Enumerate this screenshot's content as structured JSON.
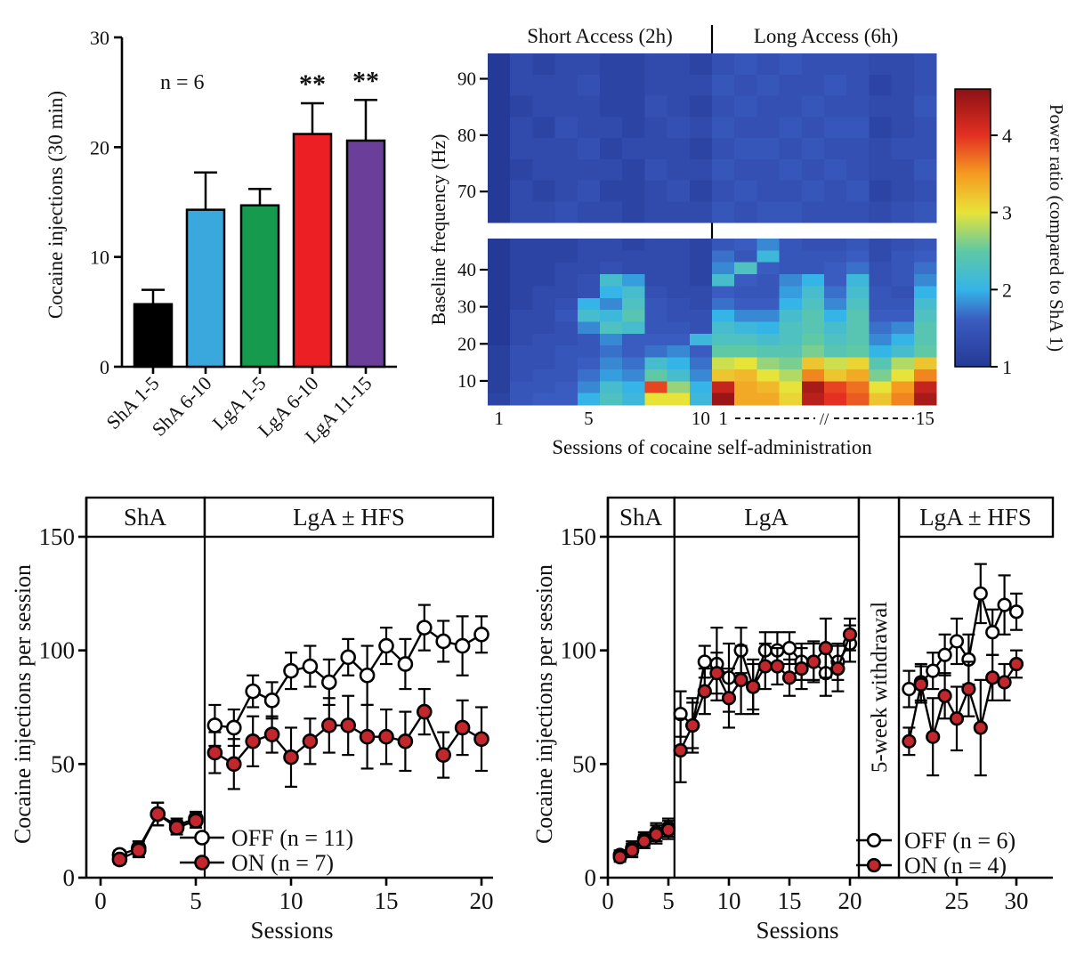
{
  "figure": {
    "background": "#ffffff",
    "text_color": "#111111"
  },
  "chart_data": [
    {
      "id": "injections_bar",
      "type": "bar",
      "annotation": "n = 6",
      "ylabel": "Cocaine injections (30 min)",
      "ylim": [
        0,
        30
      ],
      "yticks": [
        0,
        10,
        20,
        30
      ],
      "categories": [
        "ShA 1-5",
        "ShA 6-10",
        "LgA 1-5",
        "LgA 6-10",
        "LgA 11-15"
      ],
      "values": [
        5.7,
        14.3,
        14.7,
        21.2,
        20.6
      ],
      "errors": [
        1.3,
        3.4,
        1.5,
        2.8,
        3.7
      ],
      "colors": [
        "#000000",
        "#3aa8dc",
        "#169b4e",
        "#ec2024",
        "#6a3e99"
      ],
      "significance": [
        "",
        "",
        "",
        "**",
        "**"
      ]
    },
    {
      "id": "power_heatmap",
      "type": "heatmap",
      "titles": [
        "Short Access (2h)",
        "Long Access (6h)"
      ],
      "xlabel": "Sessions of cocaine self-administration",
      "ylabel": "Baseline frequency (Hz)",
      "x_axis": {
        "sha_ticks": [
          {
            "label": "1",
            "col": 0
          },
          {
            "label": "5",
            "col": 4
          },
          {
            "label": "10",
            "col": 9
          }
        ],
        "lga_ticks": [
          {
            "label": "1",
            "col": 10
          },
          {
            "label": "15",
            "col": 19
          }
        ],
        "slash": "//"
      },
      "colorbar": {
        "label": "Power ratio (compared to ShA 1)",
        "range": [
          1,
          4.6
        ],
        "ticks": [
          1,
          2,
          3,
          4
        ],
        "stops": [
          [
            1.0,
            "#253a96"
          ],
          [
            1.6,
            "#3a5bc0"
          ],
          [
            2.0,
            "#35b4e8"
          ],
          [
            2.5,
            "#5fc9a5"
          ],
          [
            3.0,
            "#e8e339"
          ],
          [
            3.5,
            "#f59b20"
          ],
          [
            4.0,
            "#e33023"
          ],
          [
            4.6,
            "#8c1014"
          ]
        ]
      },
      "upper_block": {
        "freq_top": 94.5,
        "freq_bottom": 64.5,
        "yticks": [
          90,
          80,
          70
        ],
        "rows": [
          [
            1.0,
            1.3,
            1.2,
            1.3,
            1.3,
            1.2,
            1.2,
            1.3,
            1.3,
            1.2,
            1.4,
            1.5,
            1.4,
            1.5,
            1.4,
            1.4,
            1.4,
            1.3,
            1.3,
            1.4
          ],
          [
            1.0,
            1.3,
            1.3,
            1.3,
            1.4,
            1.2,
            1.2,
            1.3,
            1.3,
            1.3,
            1.5,
            1.4,
            1.5,
            1.4,
            1.4,
            1.5,
            1.4,
            1.2,
            1.3,
            1.4
          ],
          [
            1.0,
            1.2,
            1.3,
            1.3,
            1.3,
            1.2,
            1.2,
            1.4,
            1.3,
            1.2,
            1.4,
            1.5,
            1.4,
            1.4,
            1.5,
            1.4,
            1.4,
            1.3,
            1.3,
            1.5
          ],
          [
            1.0,
            1.3,
            1.2,
            1.4,
            1.3,
            1.3,
            1.2,
            1.3,
            1.4,
            1.3,
            1.5,
            1.4,
            1.4,
            1.5,
            1.4,
            1.5,
            1.5,
            1.2,
            1.3,
            1.4
          ],
          [
            1.0,
            1.3,
            1.3,
            1.3,
            1.4,
            1.2,
            1.3,
            1.3,
            1.3,
            1.2,
            1.4,
            1.5,
            1.5,
            1.4,
            1.5,
            1.4,
            1.4,
            1.3,
            1.4,
            1.4
          ],
          [
            1.0,
            1.2,
            1.3,
            1.3,
            1.3,
            1.3,
            1.2,
            1.4,
            1.3,
            1.3,
            1.5,
            1.4,
            1.4,
            1.5,
            1.4,
            1.5,
            1.4,
            1.3,
            1.3,
            1.5
          ],
          [
            1.0,
            1.3,
            1.2,
            1.3,
            1.4,
            1.2,
            1.2,
            1.3,
            1.4,
            1.2,
            1.4,
            1.5,
            1.4,
            1.4,
            1.5,
            1.4,
            1.5,
            1.2,
            1.3,
            1.4
          ],
          [
            1.0,
            1.3,
            1.3,
            1.4,
            1.3,
            1.3,
            1.2,
            1.3,
            1.3,
            1.3,
            1.5,
            1.4,
            1.5,
            1.5,
            1.4,
            1.4,
            1.4,
            1.3,
            1.4,
            1.5
          ]
        ]
      },
      "lower_block": {
        "freq_top": 48.4,
        "freq_bottom": 3.5,
        "yticks": [
          40,
          30,
          20,
          10
        ],
        "rows": [
          [
            1.0,
            1.2,
            1.2,
            1.2,
            1.3,
            1.3,
            1.2,
            1.3,
            1.3,
            1.2,
            1.5,
            1.6,
            1.8,
            1.5,
            1.4,
            1.4,
            1.5,
            1.3,
            1.4,
            1.5
          ],
          [
            1.0,
            1.2,
            1.2,
            1.2,
            1.3,
            1.3,
            1.3,
            1.3,
            1.3,
            1.2,
            1.7,
            1.5,
            2.1,
            1.5,
            1.5,
            1.5,
            1.6,
            1.3,
            1.5,
            1.6
          ],
          [
            1.0,
            1.2,
            1.2,
            1.3,
            1.3,
            1.4,
            1.3,
            1.3,
            1.3,
            1.2,
            1.8,
            2.3,
            1.6,
            1.5,
            1.5,
            1.6,
            1.7,
            1.4,
            1.5,
            1.7
          ],
          [
            1.0,
            1.2,
            1.2,
            1.3,
            1.4,
            2.2,
            1.9,
            1.3,
            1.3,
            1.2,
            2.2,
            1.6,
            1.5,
            1.8,
            2.0,
            1.6,
            2.1,
            1.4,
            1.5,
            1.8
          ],
          [
            1.0,
            1.2,
            1.3,
            1.3,
            1.4,
            2.0,
            2.2,
            1.4,
            1.3,
            1.3,
            1.6,
            1.5,
            1.5,
            1.9,
            2.2,
            1.7,
            2.2,
            1.5,
            1.4,
            2.0
          ],
          [
            1.0,
            1.2,
            1.3,
            1.4,
            2.0,
            1.8,
            2.3,
            1.5,
            1.4,
            1.3,
            1.7,
            1.6,
            1.6,
            2.0,
            2.3,
            1.8,
            2.3,
            1.5,
            1.5,
            2.2
          ],
          [
            1.0,
            1.3,
            1.3,
            1.5,
            2.2,
            2.1,
            2.4,
            1.5,
            1.4,
            1.4,
            2.0,
            1.8,
            1.8,
            2.2,
            2.4,
            2.0,
            2.4,
            1.6,
            1.6,
            2.3
          ],
          [
            1.0,
            1.3,
            1.3,
            1.4,
            1.8,
            2.3,
            2.2,
            1.5,
            1.5,
            1.4,
            2.2,
            2.1,
            2.0,
            2.3,
            2.4,
            2.2,
            2.4,
            1.7,
            1.8,
            2.4
          ],
          [
            1.0,
            1.3,
            1.4,
            1.4,
            1.5,
            1.8,
            1.6,
            1.6,
            1.6,
            2.1,
            2.3,
            2.3,
            2.2,
            2.3,
            2.5,
            2.3,
            2.4,
            1.8,
            2.0,
            2.4
          ],
          [
            1.1,
            1.4,
            1.4,
            1.5,
            1.5,
            1.7,
            1.6,
            1.7,
            1.8,
            1.6,
            2.5,
            2.5,
            2.4,
            2.4,
            2.6,
            2.4,
            2.5,
            2.0,
            2.2,
            2.5
          ],
          [
            1.1,
            1.4,
            1.4,
            1.5,
            1.6,
            1.8,
            1.7,
            2.2,
            2.0,
            1.7,
            2.9,
            3.0,
            2.7,
            2.6,
            3.2,
            2.9,
            3.1,
            2.4,
            2.8,
            3.2
          ],
          [
            1.1,
            1.4,
            1.5,
            1.5,
            1.7,
            1.9,
            1.8,
            2.5,
            2.2,
            1.8,
            3.2,
            3.3,
            3.0,
            2.8,
            3.6,
            3.2,
            3.4,
            2.6,
            3.0,
            3.6
          ],
          [
            1.1,
            1.5,
            1.5,
            1.6,
            1.8,
            2.2,
            2.0,
            3.9,
            2.7,
            2.0,
            4.2,
            3.4,
            3.3,
            3.0,
            4.4,
            3.9,
            3.7,
            3.0,
            3.5,
            4.2
          ],
          [
            1.2,
            1.5,
            1.6,
            1.6,
            2.0,
            2.3,
            2.1,
            3.0,
            3.0,
            2.1,
            4.5,
            3.4,
            3.4,
            3.1,
            4.3,
            4.0,
            3.8,
            3.2,
            3.6,
            4.4
          ]
        ]
      }
    },
    {
      "id": "hfs_left",
      "type": "line",
      "ylabel": "Cocaine injections per session",
      "xlabel": "Sessions",
      "ylim": [
        0,
        150
      ],
      "yticks": [
        0,
        50,
        100,
        150
      ],
      "xticks": [
        0,
        5,
        10,
        15,
        20
      ],
      "phases": [
        {
          "label": "ShA"
        },
        {
          "label": "LgA ± HFS"
        }
      ],
      "series": [
        {
          "name": "OFF (n = 11)",
          "color": "#ffffff",
          "segments": [
            {
              "x": [
                1,
                2,
                3,
                4,
                5
              ],
              "y": [
                10,
                13,
                28,
                23,
                26
              ],
              "err": [
                2,
                3,
                5,
                3,
                3
              ]
            },
            {
              "x": [
                6,
                7,
                8,
                9,
                10,
                11,
                12,
                13,
                14,
                15,
                16,
                17,
                18,
                19,
                20
              ],
              "y": [
                67,
                66,
                82,
                78,
                91,
                93,
                86,
                97,
                89,
                102,
                94,
                110,
                104,
                102,
                107
              ],
              "err": [
                9,
                8,
                7,
                8,
                8,
                9,
                10,
                8,
                13,
                8,
                11,
                10,
                9,
                13,
                8
              ]
            }
          ]
        },
        {
          "name": "ON (n = 7)",
          "color": "#c1272d",
          "segments": [
            {
              "x": [
                1,
                2,
                3,
                4,
                5
              ],
              "y": [
                8,
                12,
                28,
                22,
                25
              ],
              "err": [
                2,
                3,
                5,
                3,
                3
              ]
            },
            {
              "x": [
                6,
                7,
                8,
                9,
                10,
                11,
                12,
                13,
                14,
                15,
                16,
                17,
                18,
                19,
                20
              ],
              "y": [
                55,
                50,
                60,
                63,
                53,
                60,
                67,
                67,
                62,
                62,
                60,
                73,
                54,
                66,
                61
              ],
              "err": [
                9,
                11,
                11,
                8,
                13,
                10,
                12,
                13,
                14,
                12,
                13,
                10,
                10,
                12,
                14
              ]
            }
          ]
        }
      ]
    },
    {
      "id": "hfs_right",
      "type": "line",
      "ylabel": "Cocaine injections per session",
      "xlabel": "Sessions",
      "ylim": [
        0,
        150
      ],
      "yticks": [
        0,
        50,
        100,
        150
      ],
      "xticks_main": [
        0,
        5,
        10,
        15,
        20
      ],
      "xticks_post": [
        25,
        30
      ],
      "phases": [
        {
          "label": "ShA"
        },
        {
          "label": "LgA"
        },
        {
          "label": "5-week withdrawal"
        },
        {
          "label": "LgA ± HFS"
        }
      ],
      "series": [
        {
          "name": "OFF (n = 6)",
          "color": "#ffffff",
          "segments": [
            {
              "x": [
                1,
                2,
                3,
                4,
                5
              ],
              "y": [
                10,
                13,
                17,
                20,
                22
              ],
              "err": [
                2,
                3,
                3,
                4,
                4
              ]
            },
            {
              "x": [
                6,
                7,
                8,
                9,
                10,
                11,
                12,
                13,
                14,
                15,
                16,
                17,
                18,
                19,
                20
              ],
              "y": [
                72,
                67,
                95,
                94,
                88,
                100,
                84,
                100,
                100,
                101,
                95,
                95,
                90,
                95,
                103
              ],
              "err": [
                10,
                10,
                7,
                16,
                15,
                10,
                12,
                8,
                8,
                7,
                8,
                9,
                10,
                8,
                8
              ]
            },
            {
              "x": [
                21,
                22,
                23,
                24,
                25,
                26,
                27,
                28,
                29,
                30
              ],
              "y": [
                83,
                86,
                91,
                98,
                104,
                96,
                125,
                108,
                120,
                117
              ],
              "err": [
                8,
                8,
                8,
                9,
                10,
                11,
                13,
                10,
                13,
                8
              ]
            }
          ]
        },
        {
          "name": "ON (n = 4)",
          "color": "#c1272d",
          "segments": [
            {
              "x": [
                1,
                2,
                3,
                4,
                5
              ],
              "y": [
                9,
                12,
                16,
                19,
                21
              ],
              "err": [
                2,
                3,
                3,
                4,
                4
              ]
            },
            {
              "x": [
                6,
                7,
                8,
                9,
                10,
                11,
                12,
                13,
                14,
                15,
                16,
                17,
                18,
                19,
                20
              ],
              "y": [
                56,
                67,
                82,
                90,
                79,
                87,
                84,
                93,
                93,
                88,
                92,
                95,
                101,
                92,
                107
              ],
              "err": [
                14,
                12,
                10,
                9,
                13,
                15,
                10,
                10,
                8,
                8,
                9,
                8,
                13,
                10,
                7
              ]
            },
            {
              "x": [
                21,
                22,
                23,
                24,
                25,
                26,
                27,
                28,
                29,
                30
              ],
              "y": [
                60,
                85,
                62,
                80,
                70,
                83,
                66,
                88,
                86,
                94
              ],
              "err": [
                6,
                8,
                17,
                10,
                14,
                12,
                21,
                10,
                8,
                6
              ]
            }
          ]
        }
      ]
    }
  ]
}
